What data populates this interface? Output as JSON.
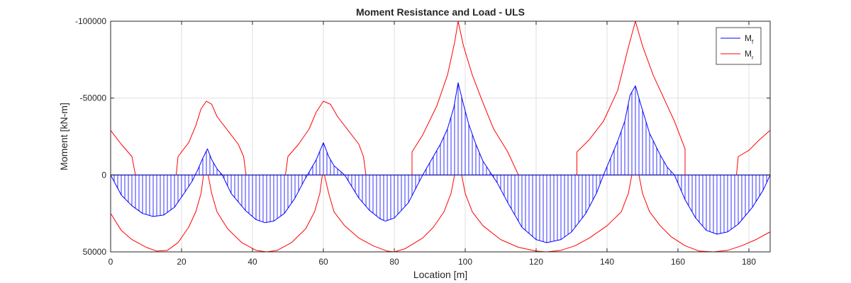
{
  "chart_data": {
    "type": "line",
    "title": "Moment Resistance and Load - ULS",
    "xlabel": "Location [m]",
    "ylabel": "Moment [kN-m]",
    "xlim": [
      0,
      186
    ],
    "ylim": [
      -100000,
      50000
    ],
    "y_reversed": true,
    "grid": true,
    "legend_position": "top-right",
    "x_ticks": [
      0,
      20,
      40,
      60,
      80,
      100,
      120,
      140,
      160,
      180
    ],
    "x_tick_labels": [
      "0",
      "20",
      "40",
      "60",
      "80",
      "100",
      "120",
      "140",
      "160",
      "180"
    ],
    "y_ticks": [
      -100000,
      -50000,
      0,
      50000
    ],
    "y_tick_labels": [
      "-100000",
      "-50000",
      "0",
      "50000"
    ],
    "colors": {
      "mf": "#0000ff",
      "mr": "#ff0000",
      "zero_line": "#0000a0"
    },
    "series": [
      {
        "name": "Mf",
        "legend_base": "M",
        "legend_sub": "f",
        "color": "#0000ff",
        "hatched": true,
        "points": [
          [
            0,
            0
          ],
          [
            3,
            13000
          ],
          [
            6,
            20000
          ],
          [
            9,
            25000
          ],
          [
            12,
            27000
          ],
          [
            15,
            26000
          ],
          [
            18,
            21000
          ],
          [
            21,
            11000
          ],
          [
            23,
            4000
          ],
          [
            24.5,
            -3000
          ],
          [
            26,
            -11000
          ],
          [
            27.3,
            -17000
          ],
          [
            28.5,
            -10000
          ],
          [
            30,
            -4000
          ],
          [
            31.5,
            0
          ],
          [
            34,
            12000
          ],
          [
            38,
            23000
          ],
          [
            41,
            29000
          ],
          [
            43.5,
            31000
          ],
          [
            46,
            30000
          ],
          [
            49,
            25000
          ],
          [
            52,
            15000
          ],
          [
            54.5,
            4000
          ],
          [
            56,
            -2000
          ],
          [
            58,
            -10000
          ],
          [
            60,
            -21000
          ],
          [
            61.5,
            -12000
          ],
          [
            63,
            -6000
          ],
          [
            66,
            0
          ],
          [
            70,
            15000
          ],
          [
            73,
            23000
          ],
          [
            76,
            28500
          ],
          [
            77.5,
            30000
          ],
          [
            80,
            28000
          ],
          [
            84,
            18000
          ],
          [
            86,
            9000
          ],
          [
            88,
            0
          ],
          [
            90.5,
            -10000
          ],
          [
            93,
            -20000
          ],
          [
            95,
            -30000
          ],
          [
            96.8,
            -44000
          ],
          [
            98,
            -60000
          ],
          [
            99.5,
            -46000
          ],
          [
            101,
            -33000
          ],
          [
            103,
            -20000
          ],
          [
            105,
            -9000
          ],
          [
            107,
            -2000
          ],
          [
            109,
            5000
          ],
          [
            112,
            18000
          ],
          [
            116,
            34000
          ],
          [
            120,
            42000
          ],
          [
            123,
            44000
          ],
          [
            127,
            42000
          ],
          [
            130,
            37000
          ],
          [
            134,
            25000
          ],
          [
            137,
            12000
          ],
          [
            139,
            0
          ],
          [
            141,
            -11000
          ],
          [
            143,
            -22000
          ],
          [
            145,
            -35000
          ],
          [
            146.5,
            -52000
          ],
          [
            148,
            -58000
          ],
          [
            149.5,
            -46000
          ],
          [
            152,
            -27000
          ],
          [
            155,
            -13000
          ],
          [
            157,
            -5000
          ],
          [
            159,
            0
          ],
          [
            162,
            16000
          ],
          [
            165,
            28000
          ],
          [
            168,
            36000
          ],
          [
            171,
            38500
          ],
          [
            174,
            37000
          ],
          [
            177,
            32000
          ],
          [
            181,
            21000
          ],
          [
            184,
            10000
          ],
          [
            186,
            0
          ]
        ]
      },
      {
        "name": "Mr",
        "legend_base": "M",
        "legend_sub": "r",
        "color": "#ff0000",
        "segments": [
          [
            [
              0,
              -29000
            ],
            [
              3,
              -20000
            ],
            [
              6,
              -12000
            ],
            [
              7,
              0
            ]
          ],
          [
            [
              0,
              25000
            ],
            [
              3,
              36000
            ],
            [
              6,
              42000
            ],
            [
              10,
              47000
            ],
            [
              13,
              49500
            ],
            [
              16,
              49000
            ],
            [
              19,
              44000
            ],
            [
              22,
              34000
            ],
            [
              24,
              24000
            ],
            [
              25.5,
              12000
            ],
            [
              26.2,
              0
            ]
          ],
          [
            [
              18.5,
              0
            ],
            [
              19,
              -12000
            ],
            [
              22,
              -21000
            ],
            [
              24,
              -32000
            ],
            [
              25.5,
              -43000
            ],
            [
              27,
              -48000
            ],
            [
              28.5,
              -46000
            ],
            [
              30,
              -38000
            ],
            [
              33,
              -29000
            ],
            [
              36,
              -20000
            ],
            [
              37.5,
              -12000
            ],
            [
              38.2,
              0
            ]
          ],
          [
            [
              27.5,
              0
            ],
            [
              28.5,
              12000
            ],
            [
              30,
              24000
            ],
            [
              33,
              35000
            ],
            [
              37,
              44000
            ],
            [
              41,
              49000
            ],
            [
              44,
              50000
            ],
            [
              47,
              49000
            ],
            [
              51,
              44000
            ],
            [
              55,
              35000
            ],
            [
              57.5,
              24000
            ],
            [
              59,
              12000
            ],
            [
              59.7,
              0
            ]
          ],
          [
            [
              49.3,
              0
            ],
            [
              50,
              -12000
            ],
            [
              53,
              -20000
            ],
            [
              56,
              -30000
            ],
            [
              58,
              -41000
            ],
            [
              60,
              -48000
            ],
            [
              62,
              -46000
            ],
            [
              64,
              -38000
            ],
            [
              67,
              -29000
            ],
            [
              70,
              -20000
            ],
            [
              71.3,
              -12000
            ],
            [
              72,
              0
            ]
          ],
          [
            [
              60.3,
              0
            ],
            [
              61.5,
              12000
            ],
            [
              63,
              24000
            ],
            [
              66,
              33000
            ],
            [
              70,
              41000
            ],
            [
              74,
              46000
            ],
            [
              78,
              49500
            ],
            [
              80,
              50000
            ],
            [
              83,
              48000
            ],
            [
              88,
              41000
            ],
            [
              91,
              34000
            ],
            [
              94,
              24000
            ],
            [
              96,
              12000
            ],
            [
              97,
              0
            ]
          ],
          [
            [
              85,
              0
            ],
            [
              85,
              -15000
            ],
            [
              88,
              -26000
            ],
            [
              92,
              -45000
            ],
            [
              95,
              -65000
            ],
            [
              97,
              -86000
            ],
            [
              98,
              -100000
            ],
            [
              99.5,
              -84000
            ],
            [
              102,
              -65000
            ],
            [
              105,
              -47000
            ],
            [
              108,
              -30000
            ],
            [
              112,
              -15000
            ],
            [
              115,
              0
            ]
          ],
          [
            [
              99,
              0
            ],
            [
              100,
              12000
            ],
            [
              102,
              24000
            ],
            [
              105,
              33000
            ],
            [
              110,
              42000
            ],
            [
              115,
              47000
            ],
            [
              120,
              49500
            ],
            [
              123,
              50000
            ],
            [
              127,
              49000
            ],
            [
              131,
              46000
            ],
            [
              135,
              41000
            ],
            [
              140,
              33000
            ],
            [
              144,
              24000
            ],
            [
              146,
              12000
            ],
            [
              147,
              0
            ]
          ],
          [
            [
              131.5,
              0
            ],
            [
              131.5,
              -15000
            ],
            [
              135,
              -23000
            ],
            [
              139,
              -35000
            ],
            [
              143,
              -55000
            ],
            [
              146,
              -83000
            ],
            [
              148,
              -100000
            ],
            [
              150,
              -84000
            ],
            [
              153,
              -65000
            ],
            [
              156,
              -50000
            ],
            [
              159,
              -35000
            ],
            [
              162,
              -17000
            ],
            [
              162,
              0
            ]
          ],
          [
            [
              149,
              0
            ],
            [
              150,
              12000
            ],
            [
              152,
              24000
            ],
            [
              155,
              33000
            ],
            [
              158,
              40000
            ],
            [
              162,
              46000
            ],
            [
              166,
              49500
            ],
            [
              170,
              50000
            ],
            [
              174,
              49000
            ],
            [
              178,
              46000
            ],
            [
              182,
              42000
            ],
            [
              186,
              37000
            ]
          ],
          [
            [
              176.5,
              0
            ],
            [
              177,
              -12000
            ],
            [
              180,
              -16000
            ],
            [
              183,
              -23000
            ],
            [
              186,
              -29000
            ]
          ]
        ]
      }
    ]
  }
}
